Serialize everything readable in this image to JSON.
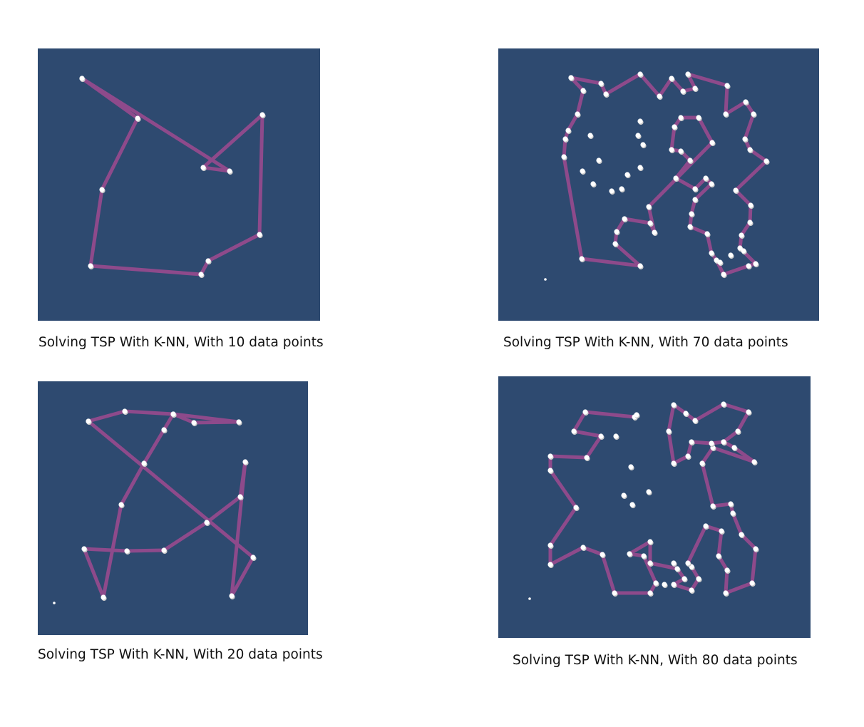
{
  "colors": {
    "background": "#2e4a70",
    "route": "#8e4a8b",
    "city": "#ffffff"
  },
  "panels": [
    {
      "caption": "Solving TSP With K-NN, With 10 data points",
      "points": [
        [
          115,
          110
        ],
        [
          193,
          166
        ],
        [
          143,
          266
        ],
        [
          127,
          373
        ],
        [
          282,
          385
        ],
        [
          292,
          366
        ],
        [
          364,
          329
        ],
        [
          368,
          161
        ],
        [
          285,
          235
        ],
        [
          322,
          240
        ],
        [
          115,
          110
        ]
      ]
    },
    {
      "caption": "Solving TSP With K-NN, With 70 data points",
      "points": [
        [
          801,
          109
        ],
        [
          818,
          127
        ],
        [
          810,
          160
        ],
        [
          797,
          183
        ],
        [
          793,
          195
        ],
        [
          791,
          220
        ],
        [
          816,
          363
        ],
        [
          898,
          373
        ],
        [
          863,
          342
        ],
        [
          865,
          325
        ],
        [
          876,
          307
        ],
        [
          912,
          313
        ],
        [
          918,
          326
        ],
        [
          910,
          290
        ],
        [
          999,
          200
        ],
        [
          980,
          165
        ],
        [
          955,
          165
        ],
        [
          946,
          178
        ],
        [
          942,
          210
        ],
        [
          955,
          212
        ],
        [
          968,
          225
        ],
        [
          948,
          250
        ],
        [
          975,
          265
        ],
        [
          990,
          250
        ],
        [
          998,
          258
        ],
        [
          975,
          280
        ],
        [
          970,
          300
        ],
        [
          968,
          318
        ],
        [
          992,
          328
        ],
        [
          998,
          355
        ],
        [
          1005,
          365
        ],
        [
          1015,
          385
        ],
        [
          1050,
          373
        ],
        [
          1060,
          370
        ],
        [
          1038,
          348
        ],
        [
          1040,
          330
        ],
        [
          1052,
          312
        ],
        [
          1053,
          288
        ],
        [
          1032,
          267
        ],
        [
          1075,
          226
        ],
        [
          1052,
          210
        ],
        [
          1045,
          195
        ],
        [
          1057,
          160
        ],
        [
          1046,
          143
        ],
        [
          1018,
          160
        ],
        [
          1020,
          120
        ],
        [
          965,
          104
        ],
        [
          975,
          124
        ],
        [
          958,
          128
        ],
        [
          942,
          110
        ],
        [
          925,
          135
        ],
        [
          898,
          104
        ],
        [
          850,
          132
        ],
        [
          843,
          117
        ],
        [
          801,
          109
        ]
      ],
      "extra_points": [
        [
          828,
          190
        ],
        [
          840,
          225
        ],
        [
          817,
          240
        ],
        [
          832,
          258
        ],
        [
          858,
          268
        ],
        [
          872,
          265
        ],
        [
          880,
          245
        ],
        [
          898,
          235
        ],
        [
          902,
          203
        ],
        [
          895,
          190
        ],
        [
          898,
          170
        ],
        [
          1043,
          352
        ],
        [
          1025,
          358
        ],
        [
          1010,
          368
        ]
      ],
      "stray": [
        765,
        392
      ]
    },
    {
      "caption": "Solving TSP With K-NN, With 20 data points",
      "points": [
        [
          124,
          591
        ],
        [
          175,
          577
        ],
        [
          243,
          581
        ],
        [
          272,
          593
        ],
        [
          335,
          592
        ],
        [
          243,
          581
        ],
        [
          230,
          603
        ],
        [
          202,
          650
        ],
        [
          170,
          708
        ],
        [
          145,
          838
        ],
        [
          118,
          770
        ],
        [
          178,
          773
        ],
        [
          230,
          772
        ],
        [
          290,
          733
        ],
        [
          337,
          697
        ],
        [
          344,
          648
        ],
        [
          325,
          836
        ],
        [
          355,
          782
        ],
        [
          124,
          591
        ]
      ],
      "stray": [
        76,
        846
      ]
    },
    {
      "caption": "Solving TSP With K-NN, With 80 data points",
      "points": [
        [
          890,
          585
        ],
        [
          821,
          578
        ],
        [
          805,
          605
        ],
        [
          843,
          612
        ],
        [
          823,
          642
        ],
        [
          772,
          640
        ],
        [
          772,
          660
        ],
        [
          808,
          712
        ],
        [
          772,
          765
        ],
        [
          772,
          792
        ],
        [
          818,
          768
        ],
        [
          845,
          778
        ],
        [
          862,
          832
        ],
        [
          912,
          832
        ],
        [
          920,
          818
        ],
        [
          903,
          780
        ],
        [
          883,
          777
        ],
        [
          912,
          760
        ],
        [
          912,
          790
        ],
        [
          950,
          798
        ],
        [
          960,
          812
        ],
        [
          945,
          820
        ],
        [
          970,
          828
        ],
        [
          980,
          812
        ],
        [
          970,
          795
        ],
        [
          965,
          790
        ],
        [
          990,
          738
        ],
        [
          1012,
          745
        ],
        [
          1008,
          780
        ],
        [
          1020,
          800
        ],
        [
          1018,
          832
        ],
        [
          1055,
          818
        ],
        [
          1060,
          770
        ],
        [
          1040,
          750
        ],
        [
          1028,
          720
        ],
        [
          1025,
          707
        ],
        [
          1000,
          710
        ],
        [
          985,
          650
        ],
        [
          1000,
          628
        ],
        [
          1058,
          648
        ],
        [
          1030,
          628
        ],
        [
          1015,
          620
        ],
        [
          998,
          622
        ],
        [
          970,
          620
        ],
        [
          965,
          640
        ],
        [
          945,
          650
        ],
        [
          938,
          605
        ],
        [
          945,
          568
        ],
        [
          962,
          580
        ],
        [
          975,
          590
        ],
        [
          1015,
          567
        ],
        [
          1050,
          578
        ],
        [
          1035,
          605
        ],
        [
          1015,
          620
        ]
      ],
      "extra_points": [
        [
          885,
          655
        ],
        [
          875,
          695
        ],
        [
          887,
          708
        ],
        [
          910,
          690
        ],
        [
          893,
          582
        ],
        [
          864,
          612
        ],
        [
          945,
          790
        ],
        [
          932,
          820
        ]
      ],
      "stray": [
        743,
        840
      ]
    }
  ]
}
